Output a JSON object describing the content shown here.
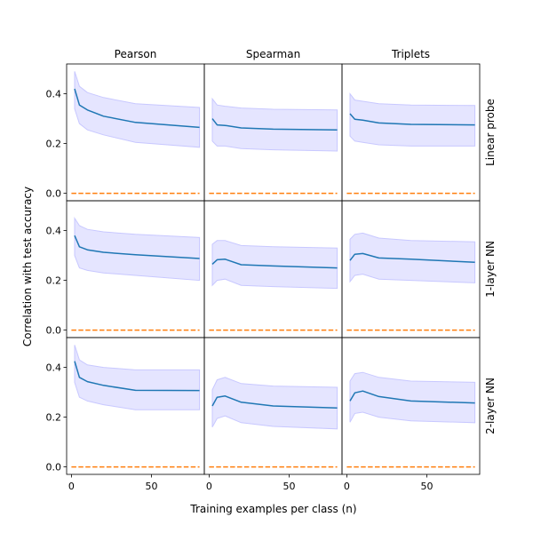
{
  "chart_data": {
    "type": "line",
    "grid": false,
    "xlabel": "Training examples per class (n)",
    "ylabel": "Correlation with test accuracy",
    "columns": [
      "Pearson",
      "Spearman",
      "Triplets"
    ],
    "rows": [
      "Linear probe",
      "1-layer NN",
      "2-layer NN"
    ],
    "xlim": [
      -3,
      83
    ],
    "ylim": [
      -0.03,
      0.52
    ],
    "xticks": [
      0,
      50
    ],
    "xtick_labels": [
      "0",
      "50"
    ],
    "yticks": [
      0.0,
      0.2,
      0.4
    ],
    "ytick_labels": [
      "0.0",
      "0.2",
      "0.4"
    ],
    "x": [
      2,
      5,
      10,
      20,
      40,
      80
    ],
    "baseline": 0.0,
    "panels": [
      {
        "row": "Linear probe",
        "col": "Pearson",
        "mean": [
          0.42,
          0.355,
          0.335,
          0.31,
          0.285,
          0.265
        ],
        "upper": [
          0.49,
          0.43,
          0.405,
          0.385,
          0.36,
          0.345
        ],
        "lower": [
          0.34,
          0.28,
          0.255,
          0.235,
          0.205,
          0.185
        ]
      },
      {
        "row": "Linear probe",
        "col": "Spearman",
        "mean": [
          0.3,
          0.275,
          0.273,
          0.263,
          0.258,
          0.255
        ],
        "upper": [
          0.38,
          0.355,
          0.35,
          0.343,
          0.338,
          0.335
        ],
        "lower": [
          0.21,
          0.19,
          0.19,
          0.18,
          0.175,
          0.17
        ]
      },
      {
        "row": "Linear probe",
        "col": "Triplets",
        "mean": [
          0.32,
          0.298,
          0.294,
          0.283,
          0.277,
          0.275
        ],
        "upper": [
          0.4,
          0.375,
          0.37,
          0.36,
          0.355,
          0.353
        ],
        "lower": [
          0.23,
          0.21,
          0.205,
          0.195,
          0.19,
          0.19
        ]
      },
      {
        "row": "1-layer NN",
        "col": "Pearson",
        "mean": [
          0.38,
          0.335,
          0.323,
          0.313,
          0.303,
          0.288
        ],
        "upper": [
          0.45,
          0.42,
          0.405,
          0.395,
          0.385,
          0.372
        ],
        "lower": [
          0.3,
          0.25,
          0.24,
          0.23,
          0.22,
          0.2
        ]
      },
      {
        "row": "1-layer NN",
        "col": "Spearman",
        "mean": [
          0.265,
          0.283,
          0.285,
          0.263,
          0.258,
          0.25
        ],
        "upper": [
          0.345,
          0.36,
          0.36,
          0.34,
          0.335,
          0.33
        ],
        "lower": [
          0.18,
          0.2,
          0.205,
          0.18,
          0.175,
          0.168
        ]
      },
      {
        "row": "1-layer NN",
        "col": "Triplets",
        "mean": [
          0.28,
          0.305,
          0.308,
          0.29,
          0.285,
          0.273
        ],
        "upper": [
          0.365,
          0.385,
          0.39,
          0.37,
          0.36,
          0.355
        ],
        "lower": [
          0.195,
          0.22,
          0.225,
          0.205,
          0.2,
          0.19
        ]
      },
      {
        "row": "2-layer NN",
        "col": "Pearson",
        "mean": [
          0.425,
          0.36,
          0.343,
          0.328,
          0.308,
          0.307
        ],
        "upper": [
          0.49,
          0.43,
          0.41,
          0.4,
          0.39,
          0.39
        ],
        "lower": [
          0.34,
          0.28,
          0.265,
          0.25,
          0.23,
          0.23
        ]
      },
      {
        "row": "2-layer NN",
        "col": "Spearman",
        "mean": [
          0.245,
          0.28,
          0.285,
          0.26,
          0.245,
          0.237
        ],
        "upper": [
          0.31,
          0.35,
          0.36,
          0.335,
          0.325,
          0.32
        ],
        "lower": [
          0.16,
          0.195,
          0.205,
          0.178,
          0.163,
          0.153
        ]
      },
      {
        "row": "2-layer NN",
        "col": "Triplets",
        "mean": [
          0.265,
          0.298,
          0.305,
          0.283,
          0.265,
          0.257
        ],
        "upper": [
          0.345,
          0.375,
          0.38,
          0.36,
          0.345,
          0.34
        ],
        "lower": [
          0.18,
          0.215,
          0.22,
          0.2,
          0.185,
          0.178
        ]
      }
    ],
    "colors": {
      "mean_line": "#1f77b4",
      "band_fill": "#e5e5ff",
      "band_edge": "#c8c8ff",
      "baseline": "#ff7f0e"
    }
  }
}
